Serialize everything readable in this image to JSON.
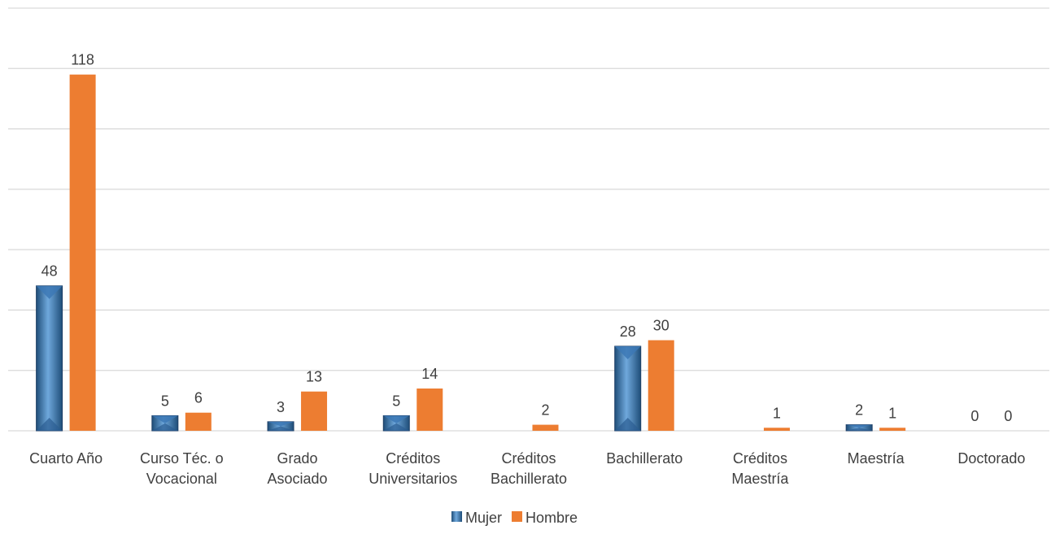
{
  "chart_data": {
    "type": "bar",
    "title": "",
    "xlabel": "",
    "ylabel": "",
    "ylim": [
      0,
      140
    ],
    "grid": true,
    "legend_position": "bottom",
    "categories": [
      [
        "Cuarto Año"
      ],
      [
        "Curso Téc. o",
        "Vocacional"
      ],
      [
        "Grado",
        "Asociado"
      ],
      [
        "Créditos",
        "Universitarios"
      ],
      [
        "Créditos",
        "Bachillerato"
      ],
      [
        "Bachillerato"
      ],
      [
        "Créditos",
        "Maestría"
      ],
      [
        "Maestría"
      ],
      [
        "Doctorado"
      ]
    ],
    "series": [
      {
        "name": "Mujer",
        "color": "#4a86c5",
        "values": [
          48,
          5,
          3,
          5,
          0,
          28,
          0,
          2,
          0
        ],
        "labels": [
          "48",
          "5",
          "3",
          "5",
          "",
          "28",
          "",
          "2",
          "0"
        ]
      },
      {
        "name": "Hombre",
        "color": "#ed7d31",
        "values": [
          118,
          6,
          13,
          14,
          2,
          30,
          1,
          1,
          0
        ],
        "labels": [
          "118",
          "6",
          "13",
          "14",
          "2",
          "30",
          "1",
          "1",
          "0"
        ]
      }
    ]
  }
}
